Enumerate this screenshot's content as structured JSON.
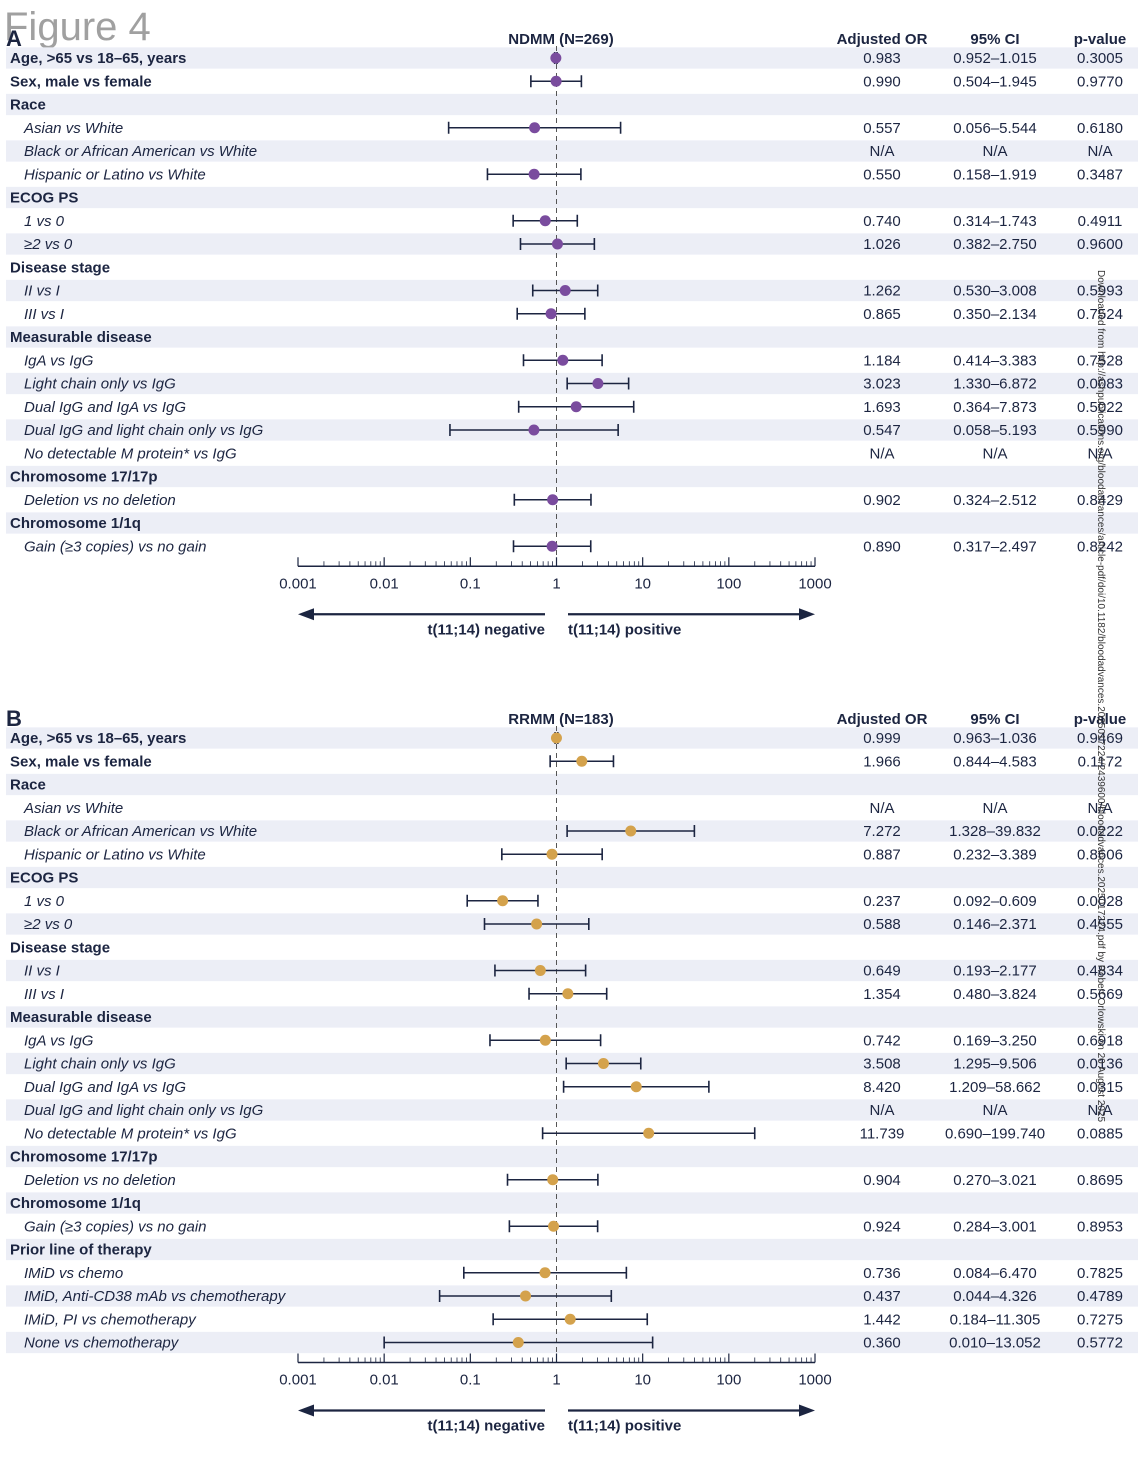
{
  "figure_label": "Figure 4",
  "colors": {
    "purple": "#7a4c9e",
    "gold": "#d4a24c",
    "navy": "#1c2541",
    "stripe": "#eceef6"
  },
  "watermark": "Downloaded from http://ashpublications.org/bloodadvances/article-pdf/doi/10.1182/bloodadvances.2025017224/2439600/bloodadvances.2025017224.pdf by Robert Orlowski on 20 August 2025",
  "chart_data": [
    {
      "type": "forest",
      "panel": "A",
      "title": "NDMM (N=269)",
      "columns": [
        "Adjusted OR",
        "95% CI",
        "p-value"
      ],
      "xscale": "log",
      "xlim": [
        0.001,
        1000
      ],
      "xticks": [
        "0.001",
        "0.01",
        "0.1",
        "1",
        "10",
        "100",
        "1000"
      ],
      "arrow_left": "t(11;14) negative",
      "arrow_right": "t(11;14) positive",
      "rows": [
        {
          "label": "Age, >65 vs 18–65, years",
          "header": true,
          "or": 0.983,
          "lo": 0.952,
          "hi": 1.015,
          "or_text": "0.983",
          "ci_text": "0.952–1.015",
          "p_text": "0.3005"
        },
        {
          "label": "Sex, male vs female",
          "header": true,
          "or": 0.99,
          "lo": 0.504,
          "hi": 1.945,
          "or_text": "0.990",
          "ci_text": "0.504–1.945",
          "p_text": "0.9770"
        },
        {
          "label": "Race",
          "header": true,
          "or": null,
          "or_text": "",
          "ci_text": "",
          "p_text": ""
        },
        {
          "label": "Asian vs White",
          "header": false,
          "or": 0.557,
          "lo": 0.056,
          "hi": 5.544,
          "or_text": "0.557",
          "ci_text": "0.056–5.544",
          "p_text": "0.6180"
        },
        {
          "label": "Black or African American vs White",
          "header": false,
          "or": null,
          "or_text": "N/A",
          "ci_text": "N/A",
          "p_text": "N/A"
        },
        {
          "label": "Hispanic or Latino vs White",
          "header": false,
          "or": 0.55,
          "lo": 0.158,
          "hi": 1.919,
          "or_text": "0.550",
          "ci_text": "0.158–1.919",
          "p_text": "0.3487"
        },
        {
          "label": "ECOG PS",
          "header": true,
          "or": null,
          "or_text": "",
          "ci_text": "",
          "p_text": ""
        },
        {
          "label": "1 vs 0",
          "header": false,
          "or": 0.74,
          "lo": 0.314,
          "hi": 1.743,
          "or_text": "0.740",
          "ci_text": "0.314–1.743",
          "p_text": "0.4911"
        },
        {
          "label": "≥2 vs 0",
          "header": false,
          "or": 1.026,
          "lo": 0.382,
          "hi": 2.75,
          "or_text": "1.026",
          "ci_text": "0.382–2.750",
          "p_text": "0.9600"
        },
        {
          "label": "Disease stage",
          "header": true,
          "or": null,
          "or_text": "",
          "ci_text": "",
          "p_text": ""
        },
        {
          "label": "II vs I",
          "header": false,
          "or": 1.262,
          "lo": 0.53,
          "hi": 3.008,
          "or_text": "1.262",
          "ci_text": "0.530–3.008",
          "p_text": "0.5993"
        },
        {
          "label": "III vs I",
          "header": false,
          "or": 0.865,
          "lo": 0.35,
          "hi": 2.134,
          "or_text": "0.865",
          "ci_text": "0.350–2.134",
          "p_text": "0.7524"
        },
        {
          "label": "Measurable disease",
          "header": true,
          "or": null,
          "or_text": "",
          "ci_text": "",
          "p_text": ""
        },
        {
          "label": "IgA vs IgG",
          "header": false,
          "or": 1.184,
          "lo": 0.414,
          "hi": 3.383,
          "or_text": "1.184",
          "ci_text": "0.414–3.383",
          "p_text": "0.7528"
        },
        {
          "label": "Light chain only vs IgG",
          "header": false,
          "or": 3.023,
          "lo": 1.33,
          "hi": 6.872,
          "or_text": "3.023",
          "ci_text": "1.330–6.872",
          "p_text": "0.0083"
        },
        {
          "label": "Dual IgG and IgA vs IgG",
          "header": false,
          "or": 1.693,
          "lo": 0.364,
          "hi": 7.873,
          "or_text": "1.693",
          "ci_text": "0.364–7.873",
          "p_text": "0.5022"
        },
        {
          "label": "Dual IgG and light chain only vs IgG",
          "header": false,
          "or": 0.547,
          "lo": 0.058,
          "hi": 5.193,
          "or_text": "0.547",
          "ci_text": "0.058–5.193",
          "p_text": "0.5990"
        },
        {
          "label": "No detectable M protein* vs IgG",
          "header": false,
          "or": null,
          "or_text": "N/A",
          "ci_text": "N/A",
          "p_text": "N/A"
        },
        {
          "label": "Chromosome 17/17p",
          "header": true,
          "or": null,
          "or_text": "",
          "ci_text": "",
          "p_text": ""
        },
        {
          "label": "Deletion vs no deletion",
          "header": false,
          "or": 0.902,
          "lo": 0.324,
          "hi": 2.512,
          "or_text": "0.902",
          "ci_text": "0.324–2.512",
          "p_text": "0.8429"
        },
        {
          "label": "Chromosome 1/1q",
          "header": true,
          "or": null,
          "or_text": "",
          "ci_text": "",
          "p_text": ""
        },
        {
          "label": "Gain (≥3 copies) vs no gain",
          "header": false,
          "or": 0.89,
          "lo": 0.317,
          "hi": 2.497,
          "or_text": "0.890",
          "ci_text": "0.317–2.497",
          "p_text": "0.8242"
        }
      ]
    },
    {
      "type": "forest",
      "panel": "B",
      "title": "RRMM (N=183)",
      "columns": [
        "Adjusted OR",
        "95% CI",
        "p-value"
      ],
      "xscale": "log",
      "xlim": [
        0.001,
        1000
      ],
      "xticks": [
        "0.001",
        "0.01",
        "0.1",
        "1",
        "10",
        "100",
        "1000"
      ],
      "arrow_left": "t(11;14) negative",
      "arrow_right": "t(11;14) positive",
      "rows": [
        {
          "label": "Age, >65 vs 18–65, years",
          "header": true,
          "or": 0.999,
          "lo": 0.963,
          "hi": 1.036,
          "or_text": "0.999",
          "ci_text": "0.963–1.036",
          "p_text": "0.9469"
        },
        {
          "label": "Sex, male vs female",
          "header": true,
          "or": 1.966,
          "lo": 0.844,
          "hi": 4.583,
          "or_text": "1.966",
          "ci_text": "0.844–4.583",
          "p_text": "0.1172"
        },
        {
          "label": "Race",
          "header": true,
          "or": null,
          "or_text": "",
          "ci_text": "",
          "p_text": ""
        },
        {
          "label": "Asian vs White",
          "header": false,
          "or": null,
          "or_text": "N/A",
          "ci_text": "N/A",
          "p_text": "N/A"
        },
        {
          "label": "Black or African American vs White",
          "header": false,
          "or": 7.272,
          "lo": 1.328,
          "hi": 39.832,
          "or_text": "7.272",
          "ci_text": "1.328–39.832",
          "p_text": "0.0222"
        },
        {
          "label": "Hispanic or Latino vs White",
          "header": false,
          "or": 0.887,
          "lo": 0.232,
          "hi": 3.389,
          "or_text": "0.887",
          "ci_text": "0.232–3.389",
          "p_text": "0.8606"
        },
        {
          "label": "ECOG PS",
          "header": true,
          "or": null,
          "or_text": "",
          "ci_text": "",
          "p_text": ""
        },
        {
          "label": "1 vs 0",
          "header": false,
          "or": 0.237,
          "lo": 0.092,
          "hi": 0.609,
          "or_text": "0.237",
          "ci_text": "0.092–0.609",
          "p_text": "0.0028"
        },
        {
          "label": "≥2 vs 0",
          "header": false,
          "or": 0.588,
          "lo": 0.146,
          "hi": 2.371,
          "or_text": "0.588",
          "ci_text": "0.146–2.371",
          "p_text": "0.4555"
        },
        {
          "label": "Disease stage",
          "header": true,
          "or": null,
          "or_text": "",
          "ci_text": "",
          "p_text": ""
        },
        {
          "label": "II vs I",
          "header": false,
          "or": 0.649,
          "lo": 0.193,
          "hi": 2.177,
          "or_text": "0.649",
          "ci_text": "0.193–2.177",
          "p_text": "0.4834"
        },
        {
          "label": "III vs I",
          "header": false,
          "or": 1.354,
          "lo": 0.48,
          "hi": 3.824,
          "or_text": "1.354",
          "ci_text": "0.480–3.824",
          "p_text": "0.5669"
        },
        {
          "label": "Measurable disease",
          "header": true,
          "or": null,
          "or_text": "",
          "ci_text": "",
          "p_text": ""
        },
        {
          "label": "IgA vs IgG",
          "header": false,
          "or": 0.742,
          "lo": 0.169,
          "hi": 3.25,
          "or_text": "0.742",
          "ci_text": "0.169–3.250",
          "p_text": "0.6918"
        },
        {
          "label": "Light chain only vs IgG",
          "header": false,
          "or": 3.508,
          "lo": 1.295,
          "hi": 9.506,
          "or_text": "3.508",
          "ci_text": "1.295–9.506",
          "p_text": "0.0136"
        },
        {
          "label": "Dual IgG and IgA vs IgG",
          "header": false,
          "or": 8.42,
          "lo": 1.209,
          "hi": 58.662,
          "or_text": "8.420",
          "ci_text": "1.209–58.662",
          "p_text": "0.0315"
        },
        {
          "label": "Dual IgG and light chain only vs IgG",
          "header": false,
          "or": null,
          "or_text": "N/A",
          "ci_text": "N/A",
          "p_text": "N/A"
        },
        {
          "label": "No detectable M protein* vs IgG",
          "header": false,
          "or": 11.739,
          "lo": 0.69,
          "hi": 199.74,
          "or_text": "11.739",
          "ci_text": "0.690–199.740",
          "p_text": "0.0885"
        },
        {
          "label": "Chromosome 17/17p",
          "header": true,
          "or": null,
          "or_text": "",
          "ci_text": "",
          "p_text": ""
        },
        {
          "label": "Deletion vs no deletion",
          "header": false,
          "or": 0.904,
          "lo": 0.27,
          "hi": 3.021,
          "or_text": "0.904",
          "ci_text": "0.270–3.021",
          "p_text": "0.8695"
        },
        {
          "label": "Chromosome 1/1q",
          "header": true,
          "or": null,
          "or_text": "",
          "ci_text": "",
          "p_text": ""
        },
        {
          "label": "Gain (≥3 copies) vs no gain",
          "header": false,
          "or": 0.924,
          "lo": 0.284,
          "hi": 3.001,
          "or_text": "0.924",
          "ci_text": "0.284–3.001",
          "p_text": "0.8953"
        },
        {
          "label": "Prior line of therapy",
          "header": true,
          "or": null,
          "or_text": "",
          "ci_text": "",
          "p_text": ""
        },
        {
          "label": "IMiD vs chemo",
          "header": false,
          "or": 0.736,
          "lo": 0.084,
          "hi": 6.47,
          "or_text": "0.736",
          "ci_text": "0.084–6.470",
          "p_text": "0.7825"
        },
        {
          "label": "IMiD, Anti-CD38 mAb vs chemotherapy",
          "header": false,
          "or": 0.437,
          "lo": 0.044,
          "hi": 4.326,
          "or_text": "0.437",
          "ci_text": "0.044–4.326",
          "p_text": "0.4789"
        },
        {
          "label": "IMiD, PI vs chemotherapy",
          "header": false,
          "or": 1.442,
          "lo": 0.184,
          "hi": 11.305,
          "or_text": "1.442",
          "ci_text": "0.184–11.305",
          "p_text": "0.7275"
        },
        {
          "label": "None vs chemotherapy",
          "header": false,
          "or": 0.36,
          "lo": 0.01,
          "hi": 13.052,
          "or_text": "0.360",
          "ci_text": "0.010–13.052",
          "p_text": "0.5772"
        }
      ]
    }
  ]
}
